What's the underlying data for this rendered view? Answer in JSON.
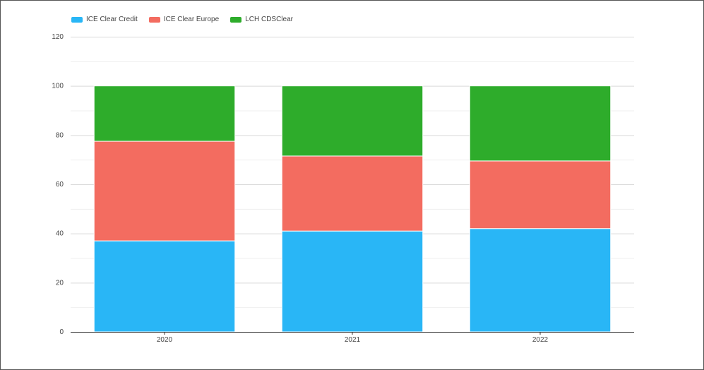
{
  "chart_data": {
    "type": "bar",
    "stacked": true,
    "categories": [
      "2020",
      "2021",
      "2022"
    ],
    "series": [
      {
        "name": "ICE Clear Credit",
        "color": "#29b6f6",
        "values": [
          37,
          41,
          42
        ]
      },
      {
        "name": "ICE Clear Europe",
        "color": "#f36c60",
        "values": [
          40.5,
          30.5,
          27.5
        ]
      },
      {
        "name": "LCH CDSClear",
        "color": "#2eac2b",
        "values": [
          22.5,
          28.5,
          30.5
        ]
      }
    ],
    "ylim": [
      0,
      120
    ],
    "yticks": [
      "0",
      "20",
      "40",
      "60",
      "80",
      "100",
      "120"
    ],
    "grid": true,
    "legend_position": "top-left"
  }
}
